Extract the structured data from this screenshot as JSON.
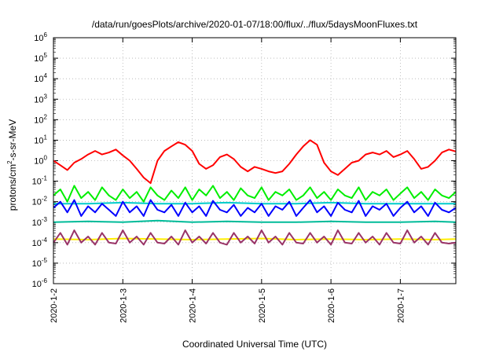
{
  "chart_data": {
    "type": "line",
    "title": "/data/run/goesPlots/archive/2020-01-07/18:00/flux/../flux/5daysMoonFluxes.txt",
    "xlabel": "Coordinated Universal Time (UTC)",
    "ylabel": "protons/cm²-s-sr-MeV",
    "ylabel_parts": {
      "pre": "protons/cm",
      "sup": "2",
      "post": "-s-sr-MeV"
    },
    "yscale": "log",
    "ylim": [
      1e-06,
      1000000.0
    ],
    "xlim": [
      0,
      5.8
    ],
    "grid": true,
    "legend": "none",
    "x_ticks": [
      {
        "x": 0,
        "label": "2020-1-2"
      },
      {
        "x": 1,
        "label": "2020-1-3"
      },
      {
        "x": 2,
        "label": "2020-1-4"
      },
      {
        "x": 3,
        "label": "2020-1-5"
      },
      {
        "x": 4,
        "label": "2020-1-6"
      },
      {
        "x": 5,
        "label": "2020-1-7"
      }
    ],
    "y_ticks": [
      {
        "exp": -6,
        "base": "10",
        "sup": "-6"
      },
      {
        "exp": -5,
        "base": "10",
        "sup": "-5"
      },
      {
        "exp": -4,
        "base": "10",
        "sup": "-4"
      },
      {
        "exp": -3,
        "base": "10",
        "sup": "-3"
      },
      {
        "exp": -2,
        "base": "10",
        "sup": "-2"
      },
      {
        "exp": -1,
        "base": "10",
        "sup": "-1"
      },
      {
        "exp": 0,
        "base": "10",
        "sup": "0"
      },
      {
        "exp": 1,
        "base": "10",
        "sup": "1"
      },
      {
        "exp": 2,
        "base": "10",
        "sup": "2"
      },
      {
        "exp": 3,
        "base": "10",
        "sup": "3"
      },
      {
        "exp": 4,
        "base": "10",
        "sup": "4"
      },
      {
        "exp": 5,
        "base": "10",
        "sup": "5"
      },
      {
        "exp": 6,
        "base": "10",
        "sup": "6"
      }
    ],
    "series": [
      {
        "color": "#ff0000",
        "x": [
          0,
          0.1,
          0.2,
          0.3,
          0.4,
          0.5,
          0.6,
          0.7,
          0.8,
          0.9,
          1.0,
          1.1,
          1.2,
          1.3,
          1.4,
          1.5,
          1.6,
          1.7,
          1.8,
          1.9,
          2.0,
          2.1,
          2.2,
          2.3,
          2.4,
          2.5,
          2.6,
          2.7,
          2.8,
          2.9,
          3.0,
          3.1,
          3.2,
          3.3,
          3.4,
          3.5,
          3.6,
          3.7,
          3.8,
          3.9,
          4.0,
          4.1,
          4.2,
          4.3,
          4.4,
          4.5,
          4.6,
          4.7,
          4.8,
          4.9,
          5.0,
          5.1,
          5.2,
          5.3,
          5.4,
          5.5,
          5.6,
          5.7,
          5.8
        ],
        "y": [
          1.0,
          0.6,
          0.35,
          0.8,
          1.2,
          2.0,
          3.0,
          2.0,
          2.5,
          3.5,
          1.8,
          1.0,
          0.4,
          0.15,
          0.08,
          1.0,
          3.0,
          5.0,
          8.0,
          6.0,
          3.0,
          0.7,
          0.4,
          0.6,
          1.5,
          2.0,
          1.2,
          0.5,
          0.3,
          0.5,
          0.4,
          0.3,
          0.25,
          0.3,
          0.7,
          2.0,
          5.0,
          10.0,
          6.0,
          0.8,
          0.3,
          0.2,
          0.4,
          0.8,
          1.0,
          2.0,
          2.5,
          2.0,
          3.0,
          1.5,
          2.0,
          3.0,
          1.2,
          0.4,
          0.5,
          1.0,
          2.5,
          3.5,
          2.8
        ]
      },
      {
        "color": "#00ee00",
        "x": [
          0,
          0.1,
          0.2,
          0.3,
          0.4,
          0.5,
          0.6,
          0.7,
          0.8,
          0.9,
          1.0,
          1.1,
          1.2,
          1.3,
          1.4,
          1.5,
          1.6,
          1.7,
          1.8,
          1.9,
          2.0,
          2.1,
          2.2,
          2.3,
          2.4,
          2.5,
          2.6,
          2.7,
          2.8,
          2.9,
          3.0,
          3.1,
          3.2,
          3.3,
          3.4,
          3.5,
          3.6,
          3.7,
          3.8,
          3.9,
          4.0,
          4.1,
          4.2,
          4.3,
          4.4,
          4.5,
          4.6,
          4.7,
          4.8,
          4.9,
          5.0,
          5.1,
          5.2,
          5.3,
          5.4,
          5.5,
          5.6,
          5.7,
          5.8
        ],
        "y": [
          0.02,
          0.04,
          0.01,
          0.06,
          0.015,
          0.03,
          0.012,
          0.05,
          0.02,
          0.012,
          0.04,
          0.015,
          0.03,
          0.01,
          0.05,
          0.02,
          0.012,
          0.035,
          0.015,
          0.05,
          0.012,
          0.04,
          0.02,
          0.06,
          0.015,
          0.03,
          0.012,
          0.045,
          0.02,
          0.015,
          0.05,
          0.012,
          0.03,
          0.02,
          0.04,
          0.012,
          0.02,
          0.05,
          0.015,
          0.03,
          0.012,
          0.04,
          0.02,
          0.015,
          0.05,
          0.012,
          0.03,
          0.02,
          0.04,
          0.012,
          0.025,
          0.05,
          0.015,
          0.03,
          0.012,
          0.04,
          0.02,
          0.015,
          0.03
        ]
      },
      {
        "color": "#00cccc",
        "x": [
          0,
          0.5,
          1.0,
          1.5,
          2.0,
          2.5,
          3.0,
          3.5,
          4.0,
          4.5,
          5.0,
          5.5,
          5.8
        ],
        "y": [
          0.008,
          0.008,
          0.009,
          0.008,
          0.008,
          0.009,
          0.008,
          0.008,
          0.009,
          0.008,
          0.008,
          0.008,
          0.008
        ]
      },
      {
        "color": "#0000ff",
        "x": [
          0,
          0.1,
          0.2,
          0.3,
          0.4,
          0.5,
          0.6,
          0.7,
          0.8,
          0.9,
          1.0,
          1.1,
          1.2,
          1.3,
          1.4,
          1.5,
          1.6,
          1.7,
          1.8,
          1.9,
          2.0,
          2.1,
          2.2,
          2.3,
          2.4,
          2.5,
          2.6,
          2.7,
          2.8,
          2.9,
          3.0,
          3.1,
          3.2,
          3.3,
          3.4,
          3.5,
          3.6,
          3.7,
          3.8,
          3.9,
          4.0,
          4.1,
          4.2,
          4.3,
          4.4,
          4.5,
          4.6,
          4.7,
          4.8,
          4.9,
          5.0,
          5.1,
          5.2,
          5.3,
          5.4,
          5.5,
          5.6,
          5.7,
          5.8
        ],
        "y": [
          0.005,
          0.01,
          0.003,
          0.012,
          0.002,
          0.006,
          0.003,
          0.008,
          0.004,
          0.002,
          0.01,
          0.003,
          0.006,
          0.002,
          0.012,
          0.004,
          0.003,
          0.007,
          0.002,
          0.009,
          0.003,
          0.006,
          0.002,
          0.011,
          0.004,
          0.003,
          0.007,
          0.002,
          0.005,
          0.003,
          0.008,
          0.002,
          0.006,
          0.004,
          0.01,
          0.002,
          0.005,
          0.012,
          0.003,
          0.006,
          0.002,
          0.009,
          0.004,
          0.003,
          0.011,
          0.002,
          0.006,
          0.004,
          0.008,
          0.002,
          0.005,
          0.01,
          0.003,
          0.006,
          0.002,
          0.009,
          0.004,
          0.003,
          0.005
        ]
      },
      {
        "color": "#00bb99",
        "x": [
          0,
          0.5,
          1.0,
          1.5,
          2.0,
          2.5,
          3.0,
          3.5,
          4.0,
          4.5,
          5.0,
          5.5,
          5.8
        ],
        "y": [
          0.001,
          0.0011,
          0.001,
          0.0012,
          0.001,
          0.0011,
          0.001,
          0.001,
          0.0011,
          0.001,
          0.001,
          0.0011,
          0.001
        ]
      },
      {
        "color": "#ffee00",
        "x": [
          0,
          0.5,
          1.0,
          1.5,
          2.0,
          2.5,
          3.0,
          3.5,
          4.0,
          4.5,
          5.0,
          5.5,
          5.8
        ],
        "y": [
          0.00015,
          0.00014,
          0.00016,
          0.00015,
          0.00014,
          0.00015,
          0.00016,
          0.00014,
          0.00015,
          0.00014,
          0.00015,
          0.00014,
          0.00015
        ]
      },
      {
        "color": "#993366",
        "x": [
          0,
          0.1,
          0.2,
          0.3,
          0.4,
          0.5,
          0.6,
          0.7,
          0.8,
          0.9,
          1.0,
          1.1,
          1.2,
          1.3,
          1.4,
          1.5,
          1.6,
          1.7,
          1.8,
          1.9,
          2.0,
          2.1,
          2.2,
          2.3,
          2.4,
          2.5,
          2.6,
          2.7,
          2.8,
          2.9,
          3.0,
          3.1,
          3.2,
          3.3,
          3.4,
          3.5,
          3.6,
          3.7,
          3.8,
          3.9,
          4.0,
          4.1,
          4.2,
          4.3,
          4.4,
          4.5,
          4.6,
          4.7,
          4.8,
          4.9,
          5.0,
          5.1,
          5.2,
          5.3,
          5.4,
          5.5,
          5.6,
          5.7,
          5.8
        ],
        "y": [
          0.0001,
          0.0003,
          8e-05,
          0.0004,
          0.0001,
          0.0002,
          8e-05,
          0.0003,
          0.0001,
          9e-05,
          0.0004,
          0.0001,
          0.0002,
          8e-05,
          0.0003,
          0.0001,
          9e-05,
          0.0002,
          8e-05,
          0.0004,
          0.0001,
          0.0002,
          9e-05,
          0.0003,
          0.0001,
          8e-05,
          0.0003,
          0.0001,
          0.0002,
          9e-05,
          0.0004,
          0.0001,
          0.0002,
          8e-05,
          0.0003,
          0.0001,
          9e-05,
          0.0003,
          0.0001,
          0.0002,
          8e-05,
          0.0004,
          0.0001,
          9e-05,
          0.0003,
          0.0001,
          0.0002,
          8e-05,
          0.0003,
          0.0001,
          9e-05,
          0.0004,
          0.0001,
          0.0002,
          8e-05,
          0.0003,
          0.0001,
          9e-05,
          0.0001
        ]
      }
    ]
  }
}
